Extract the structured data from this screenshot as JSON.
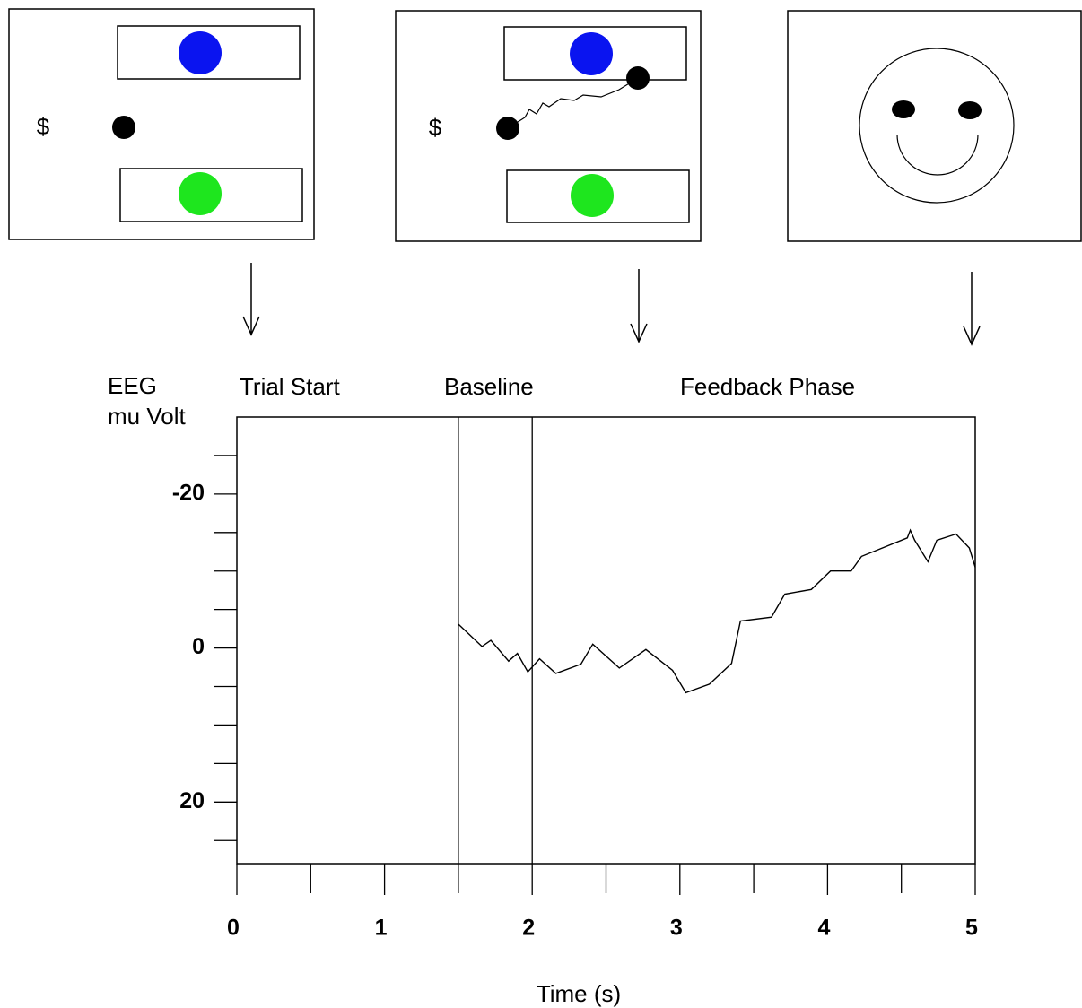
{
  "stimulus_panels": [
    {
      "cursor_label": "$"
    },
    {
      "cursor_label": "$"
    }
  ],
  "chart_data": {
    "type": "line",
    "ylabel_lines": [
      "EEG",
      "mu Volt"
    ],
    "xlabel": "Time (s)",
    "annotations": [
      "Trial Start",
      "Baseline",
      "Feedback Phase"
    ],
    "vlines": [
      1.5,
      2
    ],
    "x": [
      1.5,
      1.66,
      1.72,
      1.84,
      1.9,
      1.97,
      2.05,
      2.16,
      2.33,
      2.41,
      2.59,
      2.77,
      2.95,
      3.04,
      3.2,
      3.35,
      3.41,
      3.62,
      3.71,
      3.89,
      4.02,
      4.16,
      4.23,
      4.54,
      4.56,
      4.59,
      4.68,
      4.74,
      4.87,
      4.96,
      5.0
    ],
    "values": [
      -3.1,
      -0.2,
      -1.0,
      1.7,
      0.7,
      3.1,
      1.4,
      3.3,
      2.1,
      -0.5,
      2.6,
      0.2,
      2.9,
      5.8,
      4.7,
      2.0,
      -3.5,
      -4.0,
      -7.0,
      -7.6,
      -10.0,
      -10.0,
      -11.9,
      -14.3,
      -15.3,
      -14.0,
      -11.2,
      -14.0,
      -14.8,
      -13.0,
      -10.5
    ],
    "color": "#000000",
    "xlim": [
      0,
      5
    ],
    "xticks": [
      0,
      1,
      2,
      3,
      4,
      5
    ],
    "xminor": [
      0.5,
      1.5,
      2.5,
      3.5,
      4.5
    ],
    "ylim": [
      28,
      -30
    ],
    "yticks": [
      -20,
      0,
      20
    ],
    "yminor": [
      -25,
      -15,
      -10,
      -5,
      5,
      10,
      15,
      25
    ]
  }
}
